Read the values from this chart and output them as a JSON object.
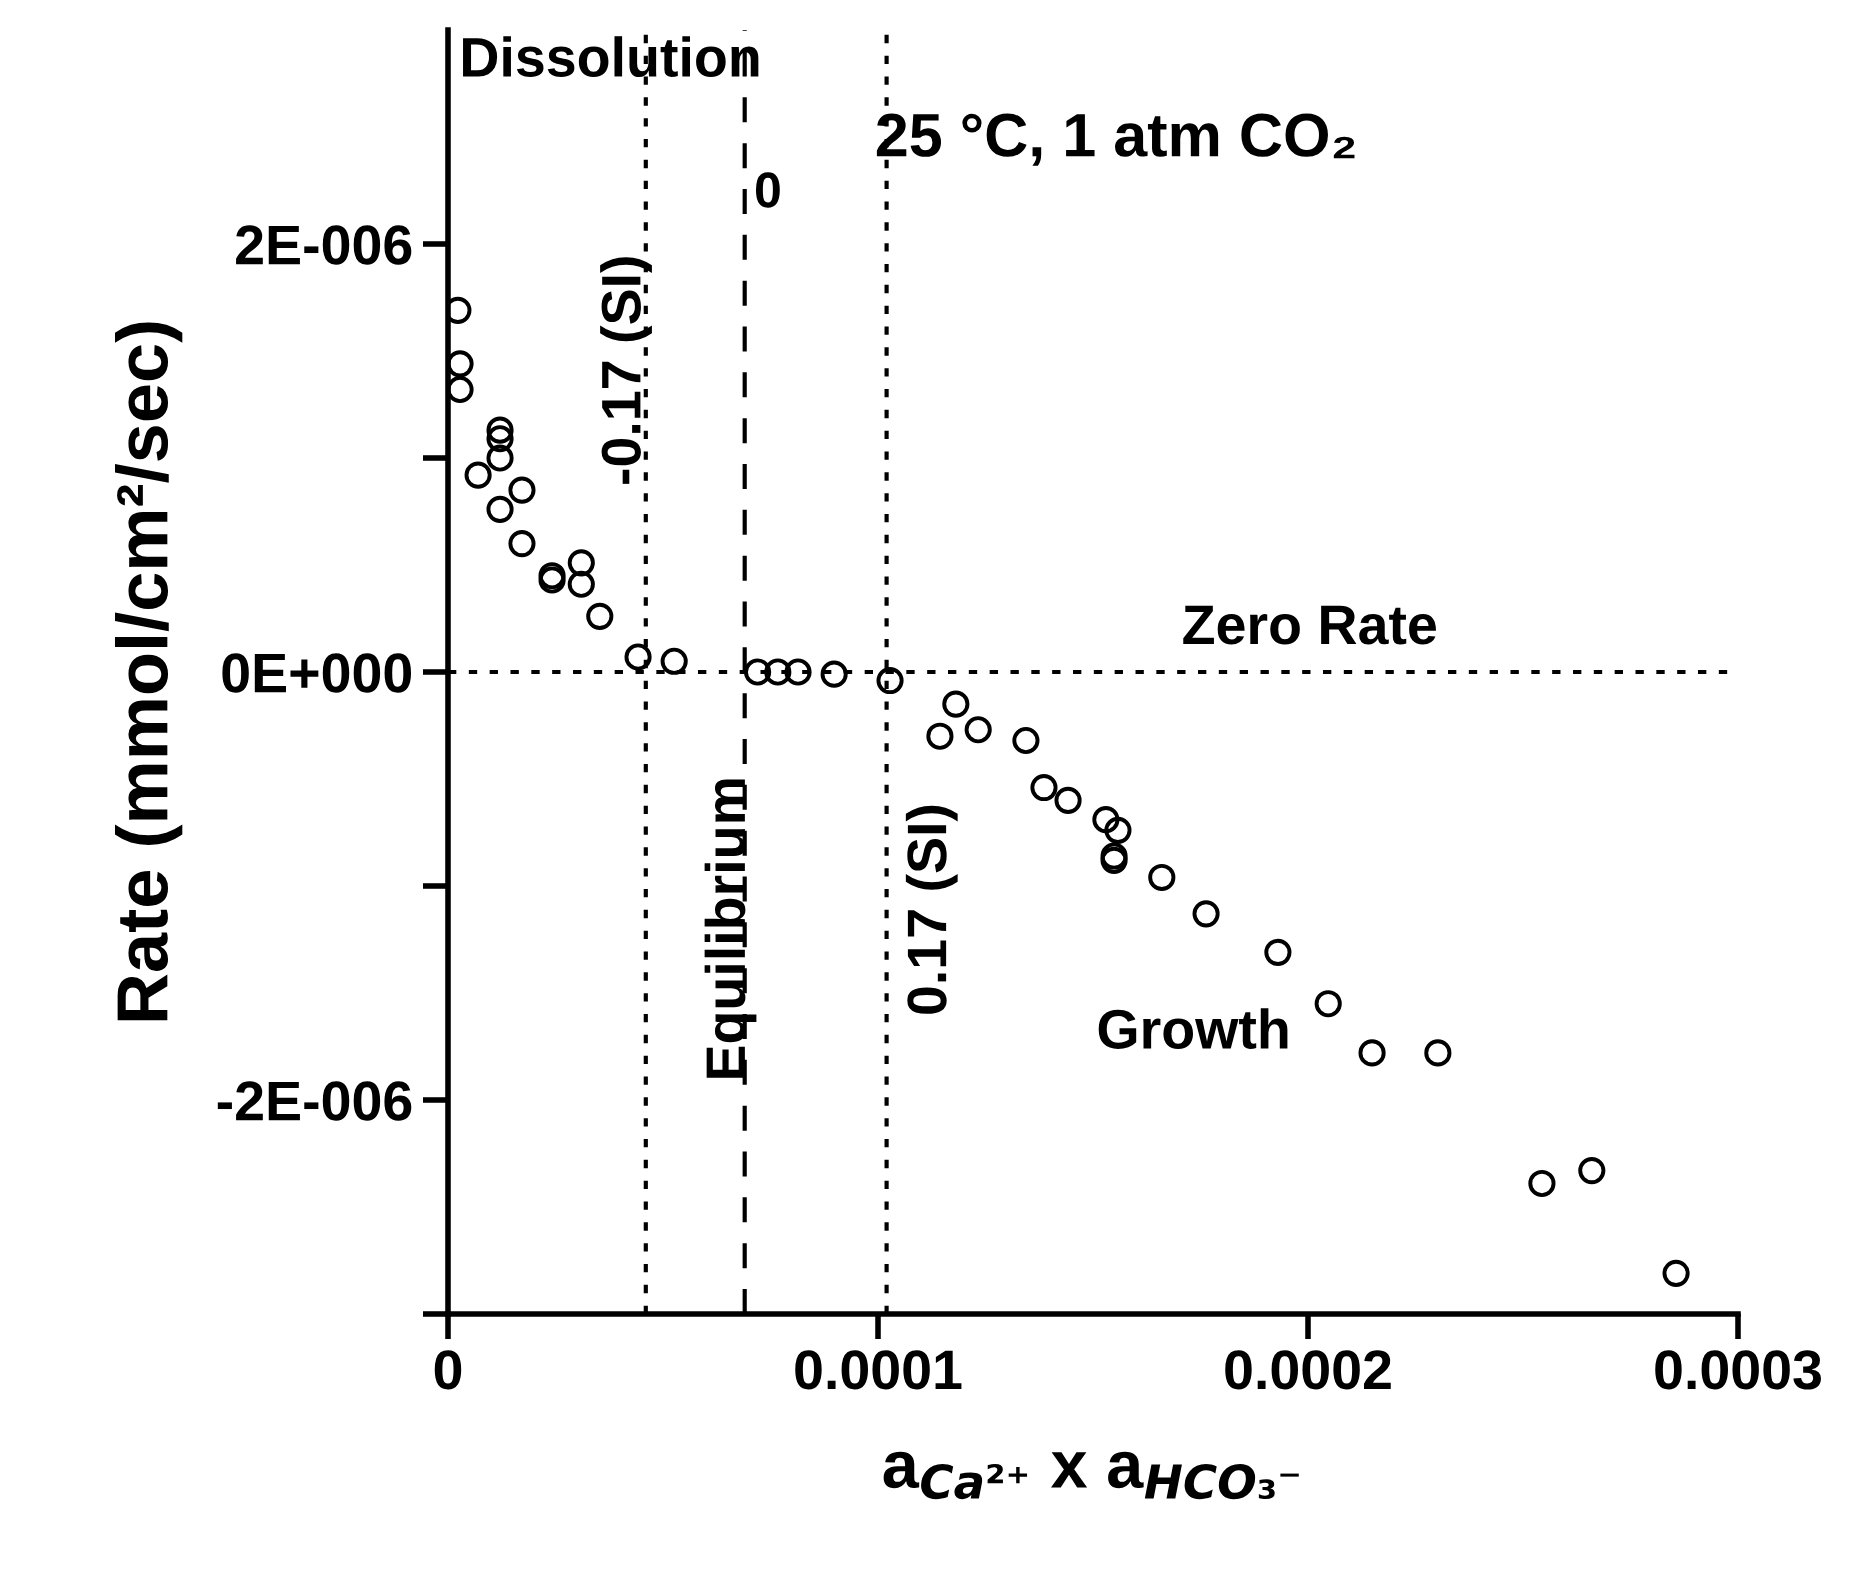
{
  "chart_data": {
    "type": "scatter",
    "xlabel": "a$_{Ca²⁺}$ x a$_{HCO₃⁻}$",
    "ylabel": "Rate (mmol/cm²/sec)",
    "x": [
      2.3e-06,
      2.8e-06,
      2.8e-06,
      1.21e-05,
      1.21e-05,
      1.21e-05,
      7e-06,
      1.72e-05,
      1.21e-05,
      1.72e-05,
      2.42e-05,
      2.42e-05,
      3.1e-05,
      3.1e-05,
      3.53e-05,
      4.42e-05,
      5.26e-05,
      7.2e-05,
      7.67e-05,
      8.14e-05,
      8.98e-05,
      0.0001028,
      0.0001181,
      0.0001144,
      0.0001233,
      0.0001344,
      0.0001386,
      0.0001442,
      0.000153,
      0.0001558,
      0.0001549,
      0.0001549,
      0.000166,
      0.0001763,
      0.000193,
      0.0002047,
      0.0002149,
      0.0002302,
      0.0002544,
      0.000266,
      0.0002856
    ],
    "series": [
      {
        "color": "#000000",
        "values": [
          1.69e-06,
          1.44e-06,
          1.32e-06,
          1.13e-06,
          1.09e-06,
          1e-06,
          9.2e-07,
          8.5e-07,
          7.6e-07,
          6e-07,
          4.5e-07,
          4.3e-07,
          5.1e-07,
          4.1e-07,
          2.6e-07,
          7e-08,
          5e-08,
          0,
          0,
          0,
          -1e-08,
          -4e-08,
          -1.5e-07,
          -3e-07,
          -2.7e-07,
          -3.2e-07,
          -5.4e-07,
          -6e-07,
          -6.9e-07,
          -7.4e-07,
          -8.8e-07,
          -8.6e-07,
          -9.6e-07,
          -1.13e-06,
          -1.31e-06,
          -1.55e-06,
          -1.78e-06,
          -1.78e-06,
          -2.39e-06,
          -2.33e-06,
          -2.81e-06
        ]
      }
    ],
    "xlim": [
      0,
      0.0003
    ],
    "ylim": [
      -3e-06,
      3e-06
    ],
    "xticks": [
      0,
      0.0001,
      0.0002,
      0.0003
    ],
    "yticks": [
      {
        "value": -3e-06,
        "label": null
      },
      {
        "value": -2e-06,
        "label": "-2E-006"
      },
      {
        "value": -1e-06,
        "label": null
      },
      {
        "value": 0,
        "label": "0E+000"
      },
      {
        "value": 1e-06,
        "label": null
      },
      {
        "value": 2e-06,
        "label": "2E-006"
      }
    ],
    "marker": "circle",
    "grid": false,
    "legend": false,
    "ref_lines": [
      {
        "axis": "y",
        "value": 0,
        "label": "Zero Rate",
        "line_style": "dotted",
        "color": "#000000"
      },
      {
        "axis": "x",
        "value": 6.9e-05,
        "label": "Equilibrium",
        "line_style": "dashed",
        "color": "#000000"
      },
      {
        "axis": "x",
        "value": 4.6e-05,
        "label": "-0.17 (SI)",
        "line_style": "dotted",
        "color": "#000000"
      },
      {
        "axis": "x",
        "value": 0.000102,
        "label": "0.17 (SI)",
        "line_style": "dotted",
        "color": "#000000"
      }
    ],
    "annotations": [
      "Dissolution",
      "25 °C, 1 atm CO₂",
      "Growth",
      "0"
    ]
  }
}
